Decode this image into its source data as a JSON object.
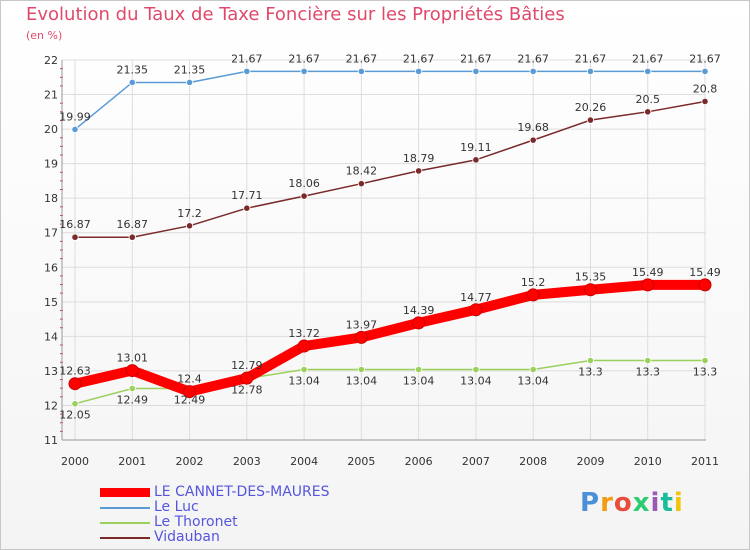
{
  "title": "Evolution du Taux de Taxe Foncière sur les Propriétés Bâties",
  "unit": "(en %)",
  "logo": {
    "letters": [
      "P",
      "r",
      "o",
      "x",
      "i",
      "t",
      "i"
    ],
    "colors": [
      "#4a90d9",
      "#f39c12",
      "#e74c3c",
      "#2ecc71",
      "#9b59b6",
      "#1abc9c",
      "#f1c40f"
    ]
  },
  "chart_data": {
    "type": "line",
    "title": "Evolution du Taux de Taxe Foncière sur les Propriétés Bâties",
    "ylabel": "(en %)",
    "x": [
      "2000",
      "2001",
      "2002",
      "2003",
      "2004",
      "2005",
      "2006",
      "2007",
      "2008",
      "2009",
      "2010",
      "2011"
    ],
    "ylim": [
      11,
      22
    ],
    "yticks": [
      "11",
      "12",
      "13",
      "14",
      "15",
      "16",
      "17",
      "18",
      "19",
      "20",
      "21",
      "22"
    ],
    "grid": true,
    "legend_position": "bottom-left",
    "series": [
      {
        "name": "LE CANNET-DES-MAURES",
        "color": "#ff0000",
        "values": [
          12.63,
          13.01,
          12.4,
          12.79,
          13.72,
          13.97,
          14.39,
          14.77,
          15.2,
          15.35,
          15.49,
          15.49
        ],
        "labels": [
          "12.63",
          "13.01",
          "12.4",
          "12.79",
          "13.72",
          "13.97",
          "14.39",
          "14.77",
          "15.2",
          "15.35",
          "15.49",
          "15.49"
        ]
      },
      {
        "name": "Le Luc",
        "color": "#5b9bd5",
        "values": [
          19.99,
          21.35,
          21.35,
          21.67,
          21.67,
          21.67,
          21.67,
          21.67,
          21.67,
          21.67,
          21.67,
          21.67
        ],
        "labels": [
          "19.99",
          "21.35",
          "21.35",
          "21.67",
          "21.67",
          "21.67",
          "21.67",
          "21.67",
          "21.67",
          "21.67",
          "21.67",
          "21.67"
        ]
      },
      {
        "name": "Le Thoronet",
        "color": "#9ad05b",
        "values": [
          12.05,
          12.49,
          12.49,
          12.78,
          13.04,
          13.04,
          13.04,
          13.04,
          13.04,
          13.3,
          13.3,
          13.3
        ],
        "labels": [
          "12.05",
          "12.49",
          "12.49",
          "12.78",
          "13.04",
          "13.04",
          "13.04",
          "13.04",
          "13.04",
          "13.3",
          "13.3",
          "13.3"
        ]
      },
      {
        "name": "Vidauban",
        "color": "#7a2a2a",
        "values": [
          16.87,
          16.87,
          17.2,
          17.71,
          18.06,
          18.42,
          18.79,
          19.11,
          19.68,
          20.26,
          20.5,
          20.8
        ],
        "labels": [
          "16.87",
          "16.87",
          "17.2",
          "17.71",
          "18.06",
          "18.42",
          "18.79",
          "19.11",
          "19.68",
          "20.26",
          "20.5",
          "20.8"
        ]
      }
    ]
  }
}
